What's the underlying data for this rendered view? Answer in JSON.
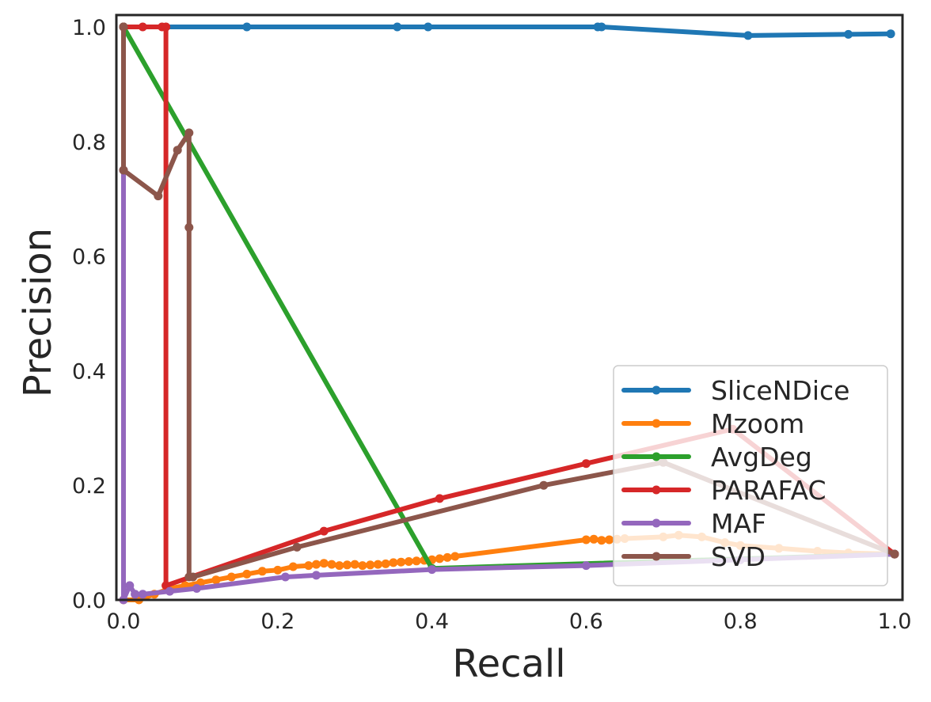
{
  "chart_data": {
    "type": "line",
    "title": "",
    "xlabel": "Recall",
    "ylabel": "Precision",
    "xlim": [
      0.0,
      1.0
    ],
    "ylim": [
      0.0,
      1.0
    ],
    "xticks": [
      "0.0",
      "0.2",
      "0.4",
      "0.6",
      "0.8",
      "1.0"
    ],
    "yticks": [
      "0.0",
      "0.2",
      "0.4",
      "0.6",
      "0.8",
      "1.0"
    ],
    "grid": false,
    "legend_position": "lower-right",
    "series": [
      {
        "name": "SliceNDice",
        "color": "#1f77b4",
        "x": [
          0.0,
          0.16,
          0.355,
          0.395,
          0.615,
          0.62,
          0.81,
          0.94,
          0.995
        ],
        "y": [
          1.0,
          1.0,
          1.0,
          1.0,
          1.0,
          1.0,
          0.985,
          0.987,
          0.988
        ]
      },
      {
        "name": "Mzoom",
        "color": "#ff7f0e",
        "x": [
          0.0,
          0.02,
          0.04,
          0.06,
          0.08,
          0.1,
          0.12,
          0.14,
          0.16,
          0.18,
          0.2,
          0.22,
          0.24,
          0.25,
          0.26,
          0.27,
          0.28,
          0.29,
          0.3,
          0.31,
          0.32,
          0.33,
          0.34,
          0.35,
          0.36,
          0.37,
          0.38,
          0.39,
          0.4,
          0.41,
          0.42,
          0.43,
          0.6,
          0.61,
          0.62,
          0.63,
          0.64,
          0.65,
          0.7,
          0.72,
          0.75,
          0.78,
          0.8,
          0.85,
          0.9,
          0.94,
          1.0
        ],
        "y": [
          0.0,
          0.0,
          0.01,
          0.02,
          0.025,
          0.03,
          0.035,
          0.04,
          0.045,
          0.05,
          0.052,
          0.058,
          0.06,
          0.062,
          0.064,
          0.062,
          0.06,
          0.061,
          0.062,
          0.06,
          0.061,
          0.062,
          0.063,
          0.065,
          0.066,
          0.067,
          0.068,
          0.069,
          0.07,
          0.072,
          0.074,
          0.076,
          0.105,
          0.106,
          0.104,
          0.105,
          0.106,
          0.107,
          0.11,
          0.113,
          0.11,
          0.1,
          0.095,
          0.09,
          0.085,
          0.082,
          0.08
        ]
      },
      {
        "name": "AvgDeg",
        "color": "#2ca02c",
        "x": [
          0.0,
          0.4,
          1.0
        ],
        "y": [
          1.0,
          0.055,
          0.08
        ]
      },
      {
        "name": "PARAFAC",
        "color": "#d62728",
        "x": [
          0.0,
          0.025,
          0.05,
          0.055,
          0.055,
          0.26,
          0.41,
          0.6,
          0.79,
          1.0
        ],
        "y": [
          1.0,
          1.0,
          1.0,
          1.0,
          0.025,
          0.12,
          0.177,
          0.238,
          0.298,
          0.08
        ]
      },
      {
        "name": "MAF",
        "color": "#9467bd",
        "x": [
          0.0,
          0.0,
          0.008,
          0.015,
          0.025,
          0.06,
          0.095,
          0.21,
          0.25,
          0.4,
          0.6,
          0.8,
          1.0
        ],
        "y": [
          0.75,
          0.0,
          0.025,
          0.01,
          0.01,
          0.015,
          0.02,
          0.04,
          0.043,
          0.053,
          0.06,
          0.07,
          0.08
        ]
      },
      {
        "name": "SVD",
        "color": "#8c564b",
        "x": [
          0.0,
          0.0,
          0.045,
          0.07,
          0.085,
          0.085,
          0.085,
          0.09,
          0.225,
          0.545,
          0.7,
          1.0
        ],
        "y": [
          1.0,
          0.75,
          0.705,
          0.785,
          0.815,
          0.65,
          0.04,
          0.04,
          0.092,
          0.2,
          0.24,
          0.08
        ]
      }
    ]
  }
}
